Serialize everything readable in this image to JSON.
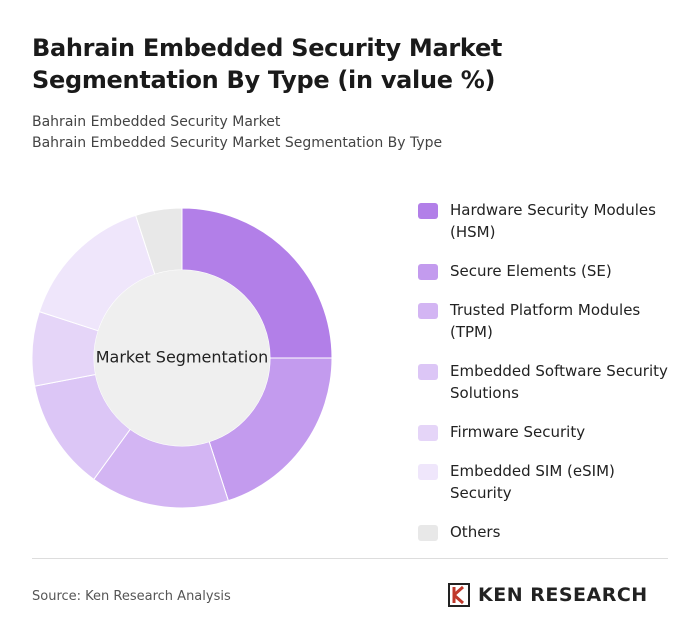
{
  "header": {
    "title": "Bahrain Embedded Security Market Segmentation By Type (in value %)",
    "subtitles": [
      "Bahrain Embedded Security Market",
      "Bahrain Embedded Security Market Segmentation By Type"
    ]
  },
  "chart_data": {
    "type": "donut",
    "center_label": "Market Segmentation",
    "categories": [
      "Hardware Security Modules (HSM)",
      "Secure Elements (SE)",
      "Trusted Platform Modules (TPM)",
      "Embedded Software Security Solutions",
      "Firmware Security",
      "Embedded SIM (eSIM) Security",
      "Others"
    ],
    "values": [
      25,
      20,
      15,
      12,
      8,
      15,
      5
    ],
    "colors": [
      "#b27fe8",
      "#c39bee",
      "#d3b5f3",
      "#dcc6f6",
      "#e5d5f8",
      "#efe6fb",
      "#e8e8e8"
    ]
  },
  "footer": {
    "source": "Source: Ken Research Analysis",
    "brand": "KEN RESEARCH"
  }
}
